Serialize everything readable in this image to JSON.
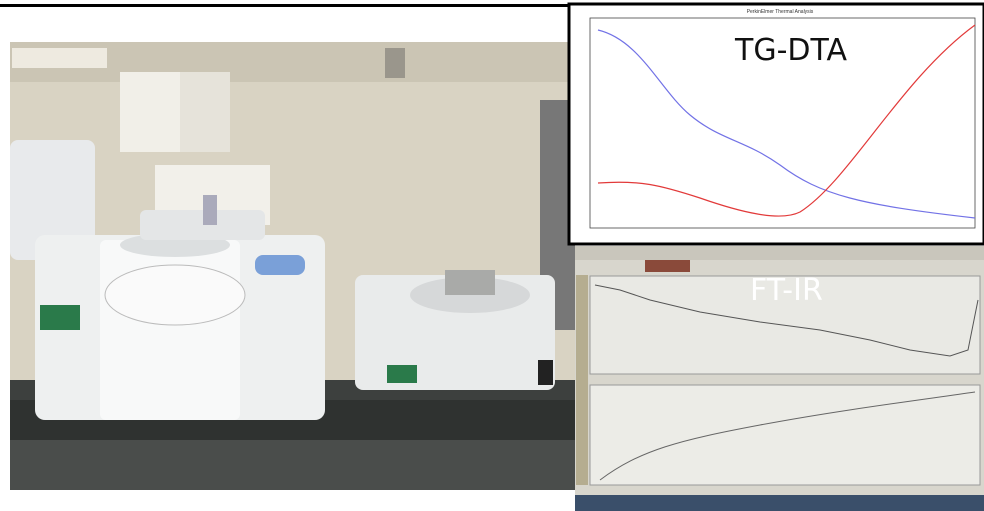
{
  "photo": {
    "insets": [
      {
        "label": "TG-DTA",
        "title": "PerkinElmer Thermal Analysis"
      },
      {
        "label": "FT-IR"
      }
    ]
  }
}
